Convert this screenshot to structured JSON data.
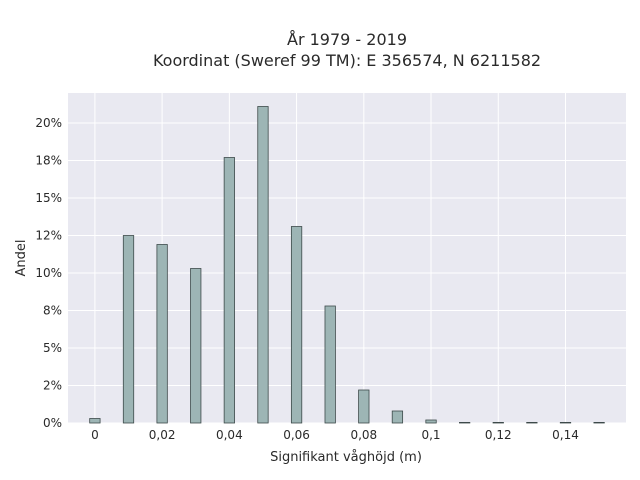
{
  "chart_data": {
    "type": "bar",
    "title_line1": "År 1979 - 2019",
    "title_line2": "Koordinat (Sweref 99 TM): E 356574, N 6211582",
    "xlabel": "Signifikant våghöjd (m)",
    "ylabel": "Andel",
    "x": [
      0,
      0.01,
      0.02,
      0.03,
      0.04,
      0.05,
      0.06,
      0.07,
      0.08,
      0.09,
      0.1,
      0.11,
      0.12,
      0.13,
      0.14,
      0.15
    ],
    "values": [
      0.3,
      12.5,
      11.9,
      10.3,
      17.7,
      21.1,
      13.1,
      7.8,
      2.2,
      0.8,
      0.2,
      0.03,
      0.03,
      0.03,
      0.03,
      0.03
    ],
    "xlim": [
      -0.008,
      0.158
    ],
    "ylim": [
      0,
      22
    ],
    "x_ticks": [
      {
        "value": 0,
        "label": "0"
      },
      {
        "value": 0.02,
        "label": "0,02"
      },
      {
        "value": 0.04,
        "label": "0,04"
      },
      {
        "value": 0.06,
        "label": "0,06"
      },
      {
        "value": 0.08,
        "label": "0,08"
      },
      {
        "value": 0.1,
        "label": "0,1"
      },
      {
        "value": 0.12,
        "label": "0,12"
      },
      {
        "value": 0.14,
        "label": "0,14"
      }
    ],
    "y_ticks": [
      {
        "value": 0,
        "label": "0%"
      },
      {
        "value": 2.5,
        "label": "2%"
      },
      {
        "value": 5,
        "label": "5%"
      },
      {
        "value": 7.5,
        "label": "8%"
      },
      {
        "value": 10,
        "label": "10%"
      },
      {
        "value": 12.5,
        "label": "12%"
      },
      {
        "value": 15,
        "label": "15%"
      },
      {
        "value": 17.5,
        "label": "18%"
      },
      {
        "value": 20,
        "label": "20%"
      }
    ],
    "grid": true,
    "bar_color": "#9db5b5",
    "bar_edge_color": "#3d4a4a",
    "plot_background": "#e9e9f1"
  }
}
